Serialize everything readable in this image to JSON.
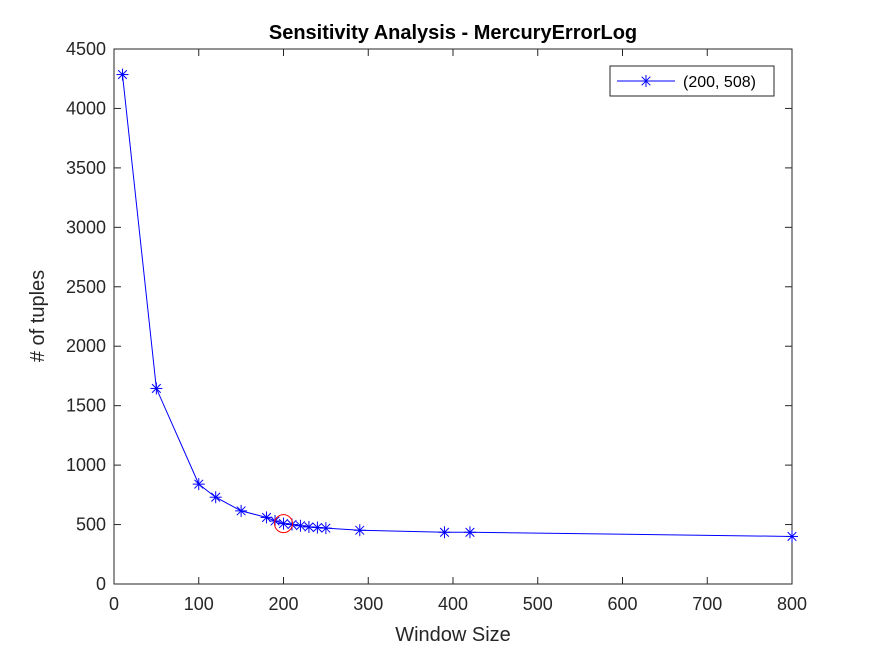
{
  "chart_data": {
    "type": "line",
    "title": "Sensitivity Analysis - MercuryErrorLog",
    "xlabel": "Window Size",
    "ylabel": "# of tuples",
    "xlim": [
      0,
      800
    ],
    "ylim": [
      0,
      4500
    ],
    "xticks": [
      0,
      100,
      200,
      300,
      400,
      500,
      600,
      700,
      800
    ],
    "yticks": [
      0,
      500,
      1000,
      1500,
      2000,
      2500,
      3000,
      3500,
      4000,
      4500
    ],
    "grid": false,
    "legend_position": "top-right",
    "series": [
      {
        "name": "(200, 508)",
        "color": "#0000ff",
        "marker": "asterisk",
        "x": [
          10,
          50,
          100,
          120,
          150,
          180,
          190,
          200,
          210,
          220,
          230,
          240,
          250,
          290,
          390,
          420,
          800
        ],
        "y": [
          4285,
          1645,
          840,
          730,
          615,
          560,
          530,
          508,
          500,
          490,
          480,
          475,
          470,
          452,
          435,
          435,
          400
        ]
      }
    ],
    "highlight": {
      "x": 200,
      "y": 508,
      "color": "#ff0000",
      "shape": "circle"
    }
  }
}
